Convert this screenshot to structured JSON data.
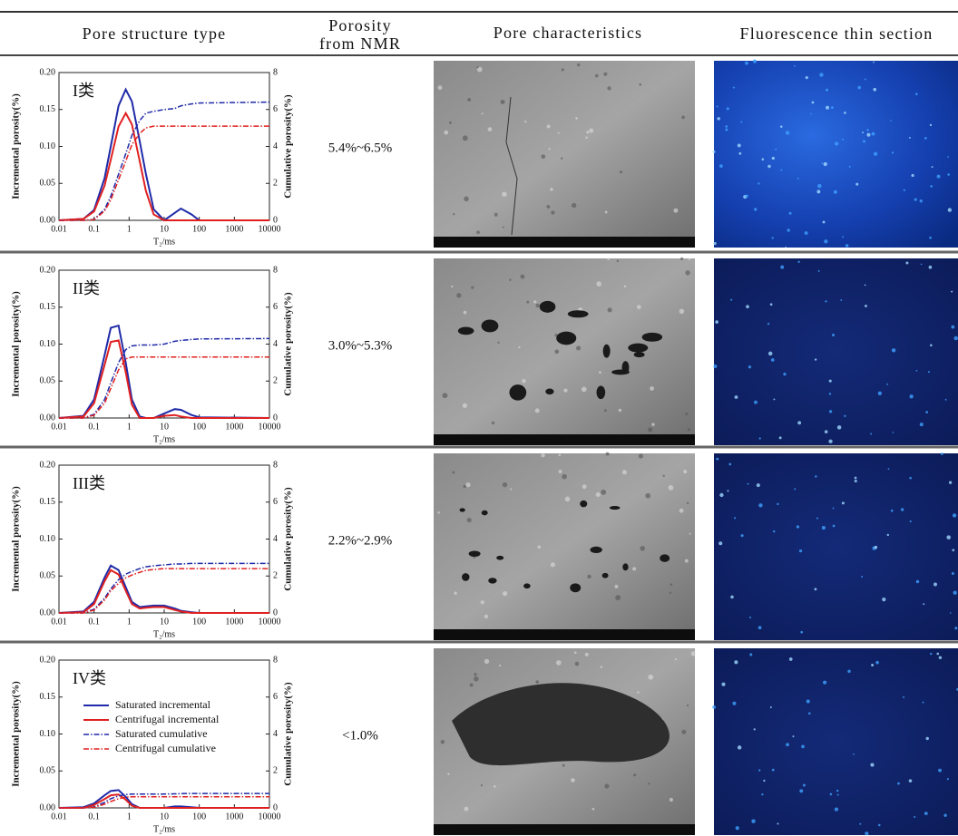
{
  "header": [
    "Pore structure type",
    "Porosity\nfrom NMR",
    "Pore characteristics",
    "Fluorescence thin section"
  ],
  "axes": {
    "x_label": "T₂/ms",
    "y_label": "Incremental porosity(%)",
    "y2_label": "Cumulative porosity(%)",
    "x_scale": "log",
    "xlim": [
      0.01,
      10000
    ],
    "ylim": [
      0,
      0.2
    ],
    "y2lim": [
      0,
      8
    ],
    "xticks": [
      0.01,
      0.1,
      1,
      10,
      100,
      1000,
      10000
    ],
    "yticks": [
      {
        "value": 0,
        "label": "0.00"
      },
      {
        "value": 0.05,
        "label": "0.05"
      },
      {
        "value": 0.1,
        "label": "0.10"
      },
      {
        "value": 0.15,
        "label": "0.15"
      },
      {
        "value": 0.2,
        "label": "0.20"
      }
    ],
    "y2ticks": [
      0,
      2,
      4,
      6,
      8
    ],
    "x": [
      0.01,
      0.05,
      0.1,
      0.2,
      0.3,
      0.5,
      0.8,
      1.2,
      2,
      3,
      5,
      10,
      20,
      30,
      60,
      100,
      10000
    ]
  },
  "legend": [
    {
      "name": "Saturated incremental",
      "color": "#1f2aa8",
      "style": "solid",
      "axis": "y"
    },
    {
      "name": "Centrifugal incremental",
      "color": "#e02020",
      "style": "solid",
      "axis": "y"
    },
    {
      "name": "Saturated cumulative",
      "color": "#1f2aa8",
      "style": "dashdot",
      "axis": "y2"
    },
    {
      "name": "Centrifugal cumulative",
      "color": "#e02020",
      "style": "dashdot",
      "axis": "y2"
    }
  ],
  "rows": [
    {
      "label": "I类",
      "porosity": "5.4%~6.5%",
      "series": [
        {
          "values": [
            0,
            0.002,
            0.014,
            0.057,
            0.1,
            0.155,
            0.177,
            0.161,
            0.107,
            0.063,
            0.015,
            0,
            0.01,
            0.016,
            0.008,
            0,
            0
          ]
        },
        {
          "values": [
            0,
            0.002,
            0.012,
            0.047,
            0.082,
            0.127,
            0.145,
            0.13,
            0.08,
            0.04,
            0.008,
            0,
            0,
            0,
            0,
            0,
            0
          ]
        },
        {
          "values": [
            0,
            0,
            0.05,
            0.6,
            1.3,
            2.5,
            3.6,
            4.6,
            5.4,
            5.8,
            5.9,
            6.0,
            6.05,
            6.2,
            6.3,
            6.35,
            6.4
          ]
        },
        {
          "values": [
            0,
            0,
            0.04,
            0.5,
            1.1,
            2.2,
            3.2,
            4.1,
            4.7,
            5.0,
            5.1,
            5.1,
            5.1,
            5.1,
            5.1,
            5.1,
            5.1
          ]
        }
      ]
    },
    {
      "label": "II类",
      "porosity": "3.0%~5.3%",
      "series": [
        {
          "values": [
            0,
            0.003,
            0.025,
            0.085,
            0.122,
            0.125,
            0.075,
            0.025,
            0.002,
            0,
            0,
            0.006,
            0.012,
            0.011,
            0.004,
            0.001,
            0
          ]
        },
        {
          "values": [
            0,
            0.002,
            0.02,
            0.072,
            0.103,
            0.105,
            0.062,
            0.018,
            0,
            0,
            0,
            0.003,
            0.004,
            0.002,
            0,
            0,
            0
          ]
        },
        {
          "values": [
            0,
            0,
            0.2,
            1.0,
            1.9,
            3.0,
            3.7,
            3.9,
            3.95,
            3.95,
            3.95,
            4.0,
            4.15,
            4.2,
            4.25,
            4.28,
            4.3
          ]
        },
        {
          "values": [
            0,
            0,
            0.15,
            0.8,
            1.6,
            2.6,
            3.2,
            3.3,
            3.3,
            3.3,
            3.3,
            3.3,
            3.3,
            3.3,
            3.3,
            3.3,
            3.3
          ]
        }
      ]
    },
    {
      "label": "III类",
      "porosity": "2.2%~2.9%",
      "series": [
        {
          "values": [
            0,
            0.002,
            0.015,
            0.048,
            0.064,
            0.058,
            0.035,
            0.015,
            0.008,
            0.009,
            0.01,
            0.01,
            0.006,
            0.003,
            0.001,
            0,
            0
          ]
        },
        {
          "values": [
            0,
            0.001,
            0.012,
            0.043,
            0.058,
            0.052,
            0.03,
            0.012,
            0.006,
            0.007,
            0.008,
            0.008,
            0.004,
            0.002,
            0,
            0,
            0
          ]
        },
        {
          "values": [
            0,
            0,
            0.2,
            0.8,
            1.3,
            1.8,
            2.1,
            2.25,
            2.4,
            2.5,
            2.55,
            2.6,
            2.65,
            2.65,
            2.68,
            2.68,
            2.68
          ]
        },
        {
          "values": [
            0,
            0,
            0.15,
            0.7,
            1.2,
            1.6,
            1.9,
            2.05,
            2.2,
            2.3,
            2.35,
            2.4,
            2.4,
            2.4,
            2.4,
            2.4,
            2.4
          ]
        }
      ]
    },
    {
      "label": "IV类",
      "porosity": "<1.0%",
      "series": [
        {
          "values": [
            0,
            0.001,
            0.006,
            0.017,
            0.023,
            0.024,
            0.015,
            0.005,
            0,
            0,
            0,
            0,
            0.002,
            0.002,
            0.001,
            0,
            0
          ]
        },
        {
          "values": [
            0,
            0,
            0.004,
            0.012,
            0.017,
            0.018,
            0.011,
            0.003,
            0,
            0,
            0,
            0,
            0,
            0,
            0,
            0,
            0
          ]
        },
        {
          "values": [
            0,
            0,
            0.05,
            0.3,
            0.5,
            0.65,
            0.72,
            0.75,
            0.75,
            0.75,
            0.75,
            0.75,
            0.76,
            0.77,
            0.78,
            0.78,
            0.78
          ]
        },
        {
          "values": [
            0,
            0,
            0.03,
            0.2,
            0.35,
            0.5,
            0.58,
            0.6,
            0.6,
            0.6,
            0.6,
            0.6,
            0.6,
            0.6,
            0.6,
            0.6,
            0.6
          ]
        }
      ]
    }
  ]
}
